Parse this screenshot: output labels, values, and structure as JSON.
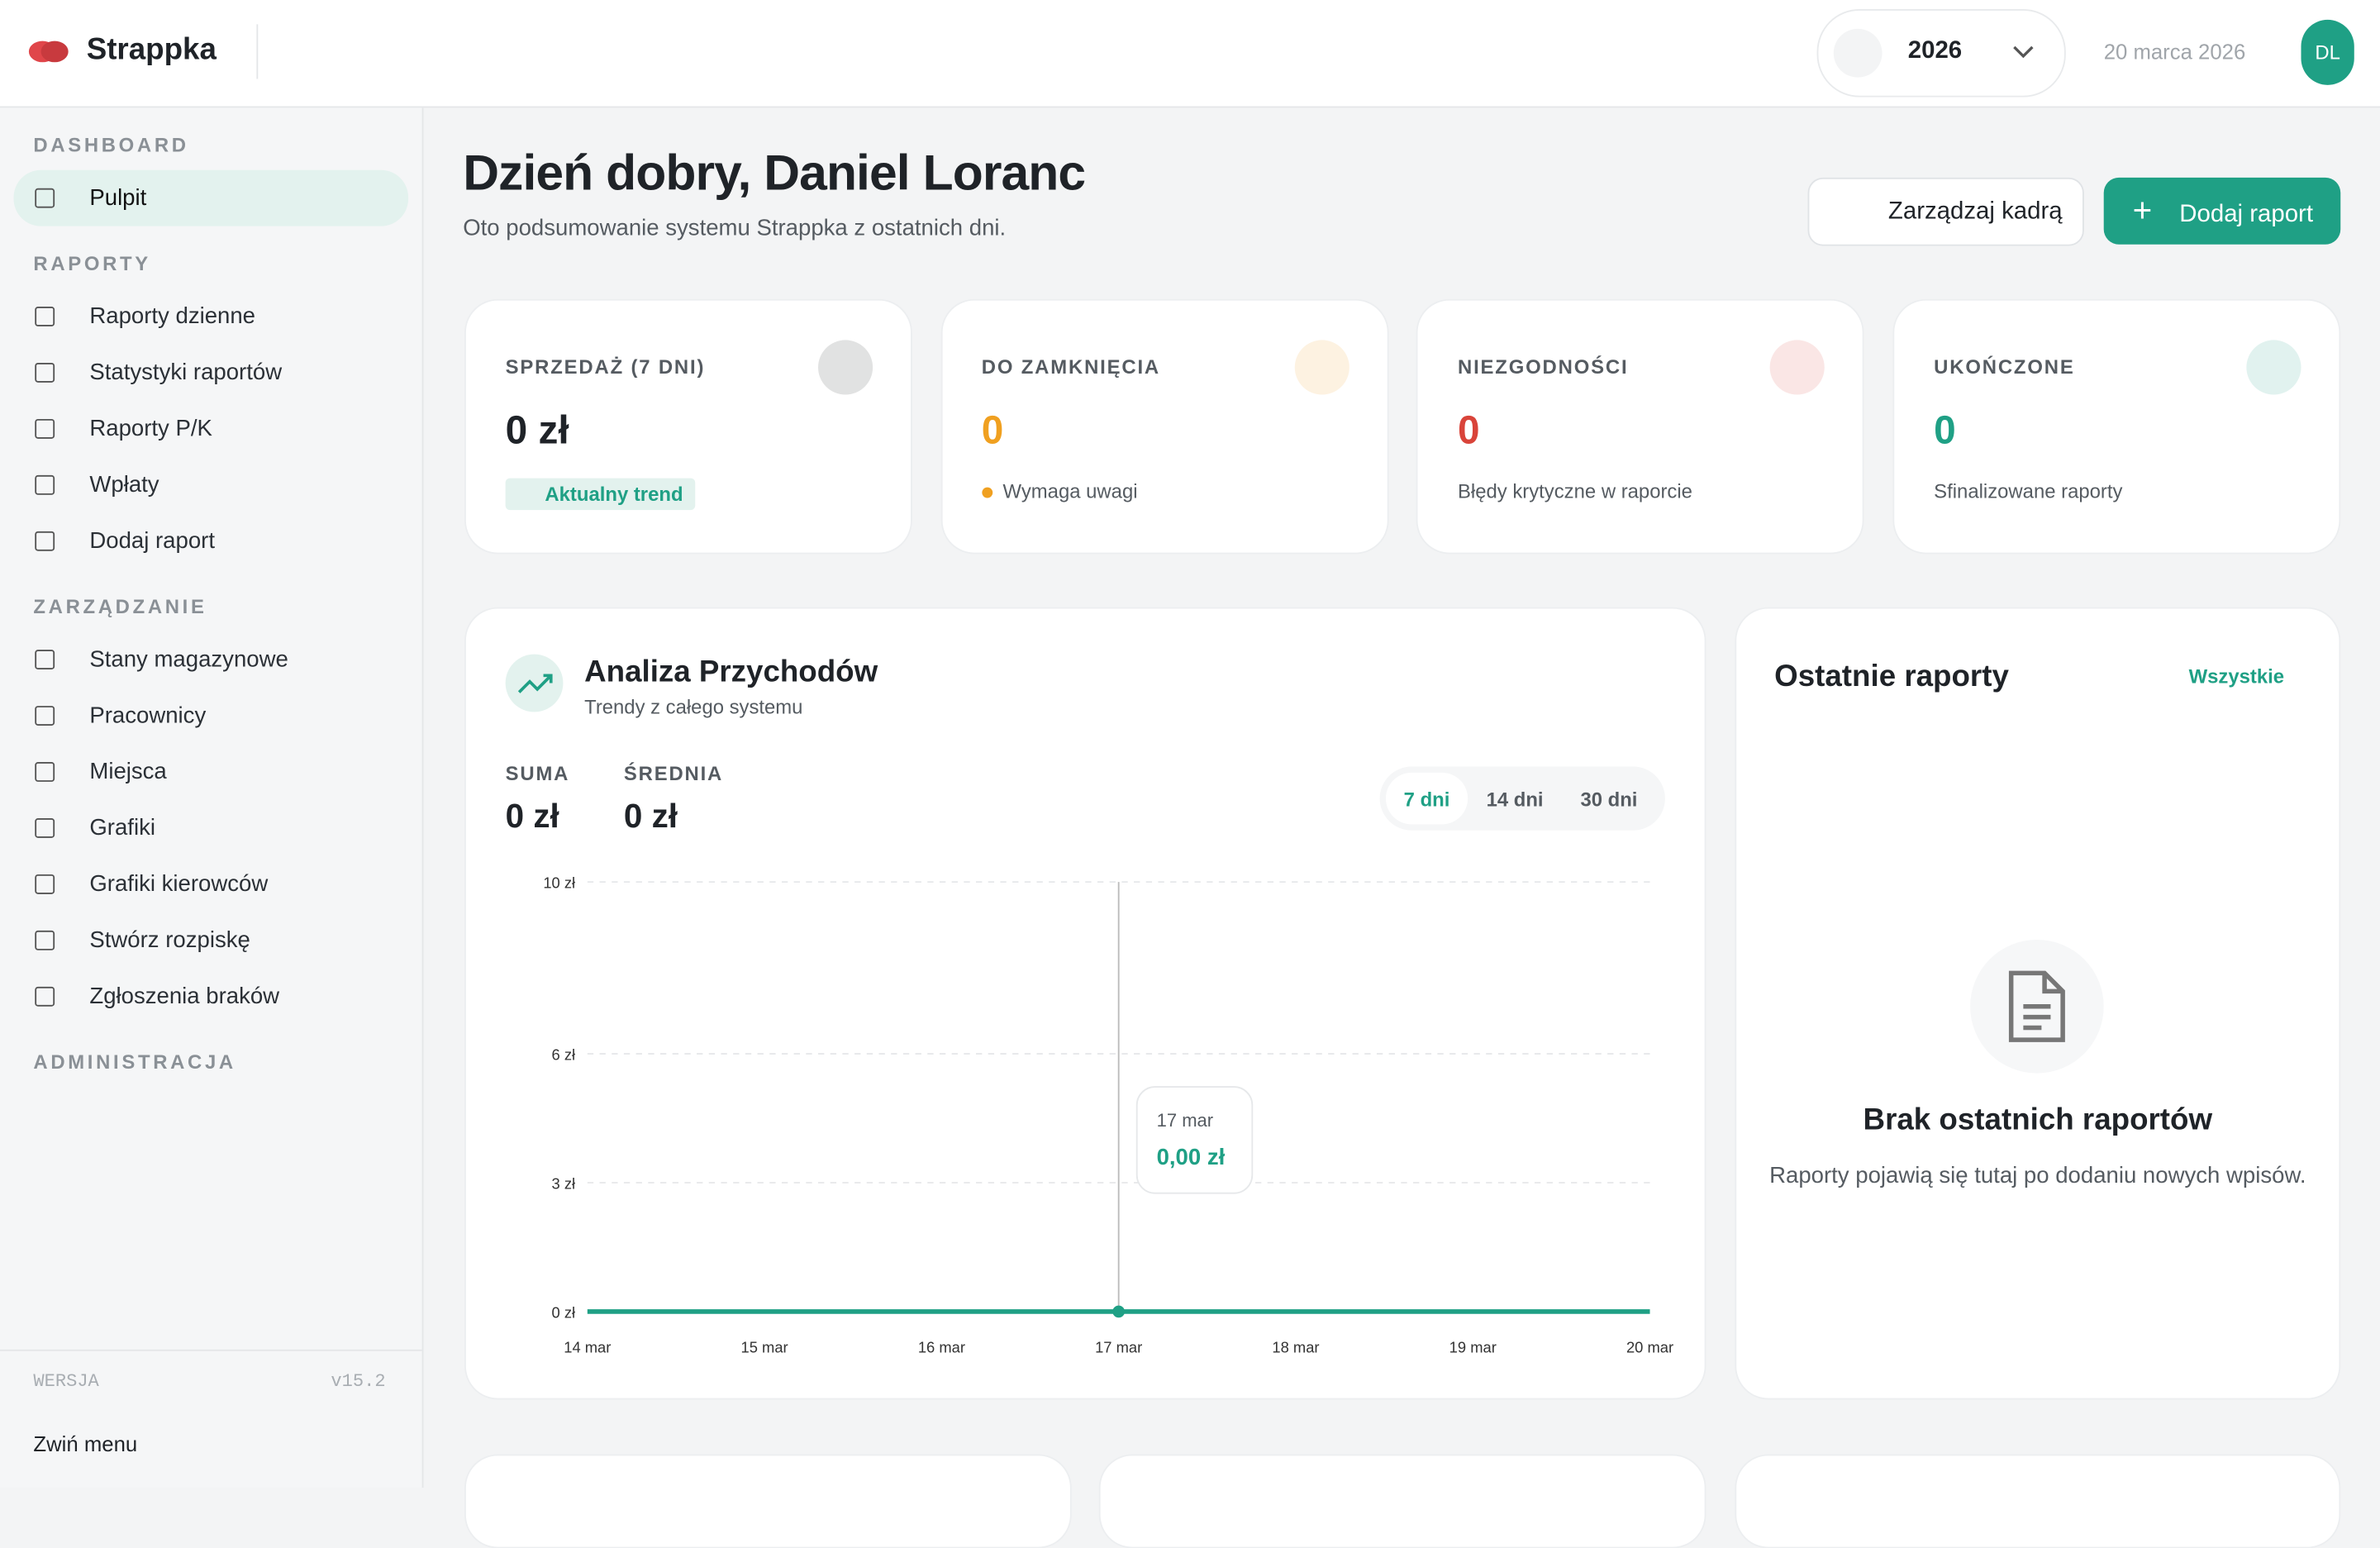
{
  "header": {
    "brand": "Strappka",
    "year": "2026",
    "date": "20 marca 2026",
    "avatar": "DL"
  },
  "sidebar": {
    "sections": [
      {
        "title": "DASHBOARD",
        "items": [
          "Pulpit"
        ]
      },
      {
        "title": "RAPORTY",
        "items": [
          "Raporty dzienne",
          "Statystyki raportów",
          "Raporty P/K",
          "Wpłaty",
          "Dodaj raport"
        ]
      },
      {
        "title": "ZARZĄDZANIE",
        "items": [
          "Stany magazynowe",
          "Pracownicy",
          "Miejsca",
          "Grafiki",
          "Grafiki kierowców",
          "Stwórz rozpiskę",
          "Zgłoszenia braków"
        ]
      },
      {
        "title": "ADMINISTRACJA",
        "items": []
      }
    ],
    "version_label": "WERSJA",
    "version": "v15.2",
    "collapse": "Zwiń menu"
  },
  "main": {
    "greeting": "Dzień dobry, Daniel Loranc",
    "subtitle": "Oto podsumowanie systemu Strappka z ostatnich dni.",
    "buttons": [
      "Zarządzaj kadrą",
      "Dodaj raport"
    ],
    "stats": [
      {
        "label": "SPRZEDAŻ (7 DNI)",
        "value": "0 zł",
        "note": "Aktualny trend",
        "color": "#1f2328"
      },
      {
        "label": "DO ZAMKNIĘCIA",
        "value": 0,
        "note": "Wymaga uwagi",
        "color": "#f0a020"
      },
      {
        "label": "NIEZGODNOŚCI",
        "value": 0,
        "note": "Błędy krytyczne w raporcie",
        "color": "#d9443a"
      },
      {
        "label": "UKOŃCZONE",
        "value": 0,
        "note": "Sfinalizowane raporty",
        "color": "#1fa085"
      }
    ],
    "recent": {
      "title": "Ostatnie raporty",
      "link": "Wszystkie",
      "empty_title": "Brak ostatnich raportów",
      "empty_text": "Raporty pojawią się tutaj po dodaniu nowych wpisów."
    }
  },
  "chart_data": {
    "type": "line",
    "title": "Analiza Przychodów",
    "subtitle": "Trendy z całego systemu",
    "summary": [
      {
        "label": "SUMA",
        "value": "0 zł"
      },
      {
        "label": "ŚREDNIA",
        "value": "0 zł"
      }
    ],
    "ranges": [
      "7 dni",
      "14 dni",
      "30 dni"
    ],
    "categories": [
      "14 mar",
      "15 mar",
      "16 mar",
      "17 mar",
      "18 mar",
      "19 mar",
      "20 mar"
    ],
    "values": [
      0,
      0,
      0,
      0,
      0,
      0,
      0
    ],
    "color": "#1fa085",
    "ylim": [
      0,
      10
    ],
    "yticks": [
      {
        "value": 0,
        "label": "0 zł"
      },
      {
        "value": 3,
        "label": "3 zł"
      },
      {
        "value": 6,
        "label": "6 zł"
      },
      {
        "value": 10,
        "label": "10 zł"
      }
    ],
    "grid": true,
    "tooltip": {
      "title": "17 mar",
      "value": "0,00 zł"
    }
  }
}
